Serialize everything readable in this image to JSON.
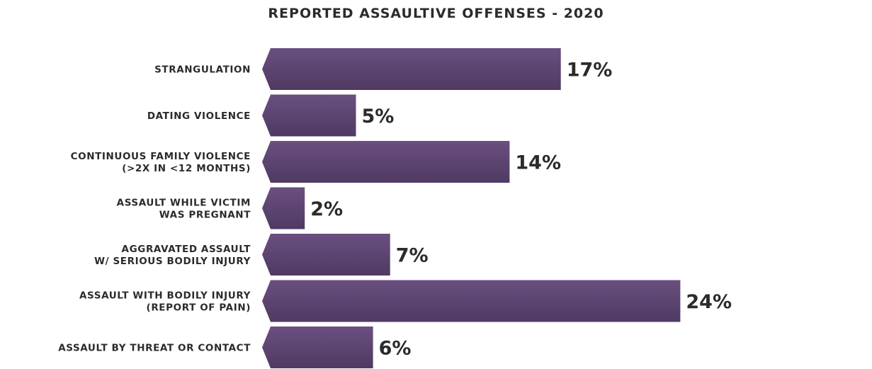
{
  "chart_data": {
    "type": "bar",
    "orientation": "horizontal",
    "title": "REPORTED ASSAULTIVE OFFENSES - 2020",
    "categories": [
      [
        "STRANGULATION"
      ],
      [
        "DATING VIOLENCE"
      ],
      [
        "CONTINUOUS FAMILY VIOLENCE",
        "(>2X IN <12 MONTHS)"
      ],
      [
        "ASSAULT WHILE VICTIM",
        "WAS PREGNANT"
      ],
      [
        "AGGRAVATED ASSAULT",
        "W/ SERIOUS BODILY INJURY"
      ],
      [
        "ASSAULT WITH BODILY INJURY",
        "(REPORT OF PAIN)"
      ],
      [
        "ASSAULT BY THREAT OR CONTACT"
      ]
    ],
    "values": [
      17,
      5,
      14,
      2,
      7,
      24,
      6
    ],
    "value_labels": [
      "17%",
      "5%",
      "14%",
      "2%",
      "7%",
      "24%",
      "6%"
    ],
    "unit": "%",
    "bar_color_top": "#6a4f80",
    "bar_color_bottom": "#4f3a62",
    "text_color": "#2b2b2b",
    "grid": false,
    "legend": "none"
  }
}
